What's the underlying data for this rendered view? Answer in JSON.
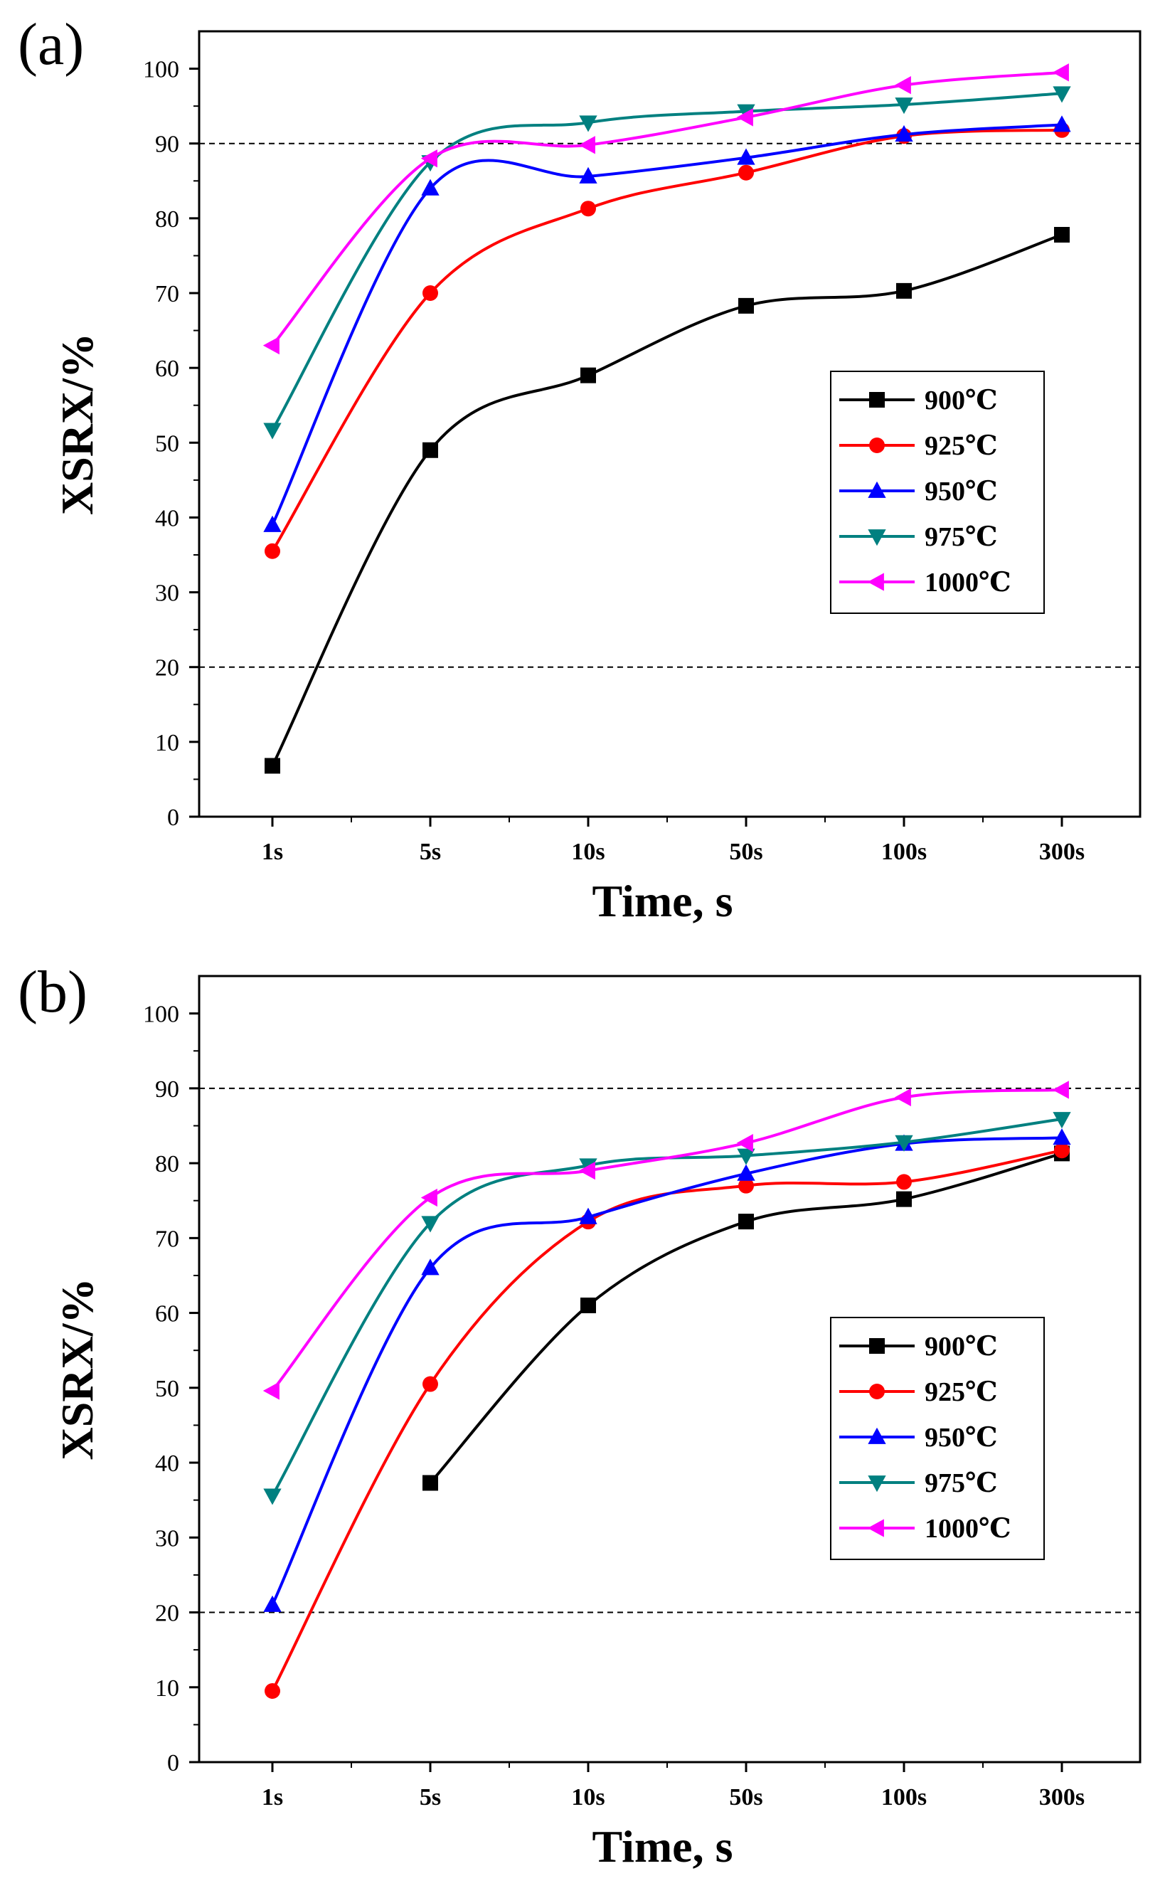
{
  "chart_data": [
    {
      "type": "line",
      "panel_label": "(a)",
      "xlabel": "Time, s",
      "ylabel": "XSRX/%",
      "categories": [
        "1s",
        "5s",
        "10s",
        "50s",
        "100s",
        "300s"
      ],
      "ylim": [
        0,
        105
      ],
      "yticks": [
        0,
        10,
        20,
        30,
        40,
        50,
        60,
        70,
        80,
        90,
        100
      ],
      "reference_lines": [
        20,
        90
      ],
      "legend_position": "right-middle",
      "series": [
        {
          "name": "900℃",
          "color": "#000000",
          "marker": "square",
          "values": [
            6.8,
            49.0,
            59.0,
            68.3,
            70.3,
            77.8
          ]
        },
        {
          "name": "925℃",
          "color": "#ff0000",
          "marker": "circle",
          "values": [
            35.5,
            70.0,
            81.3,
            86.1,
            91.0,
            91.8
          ]
        },
        {
          "name": "950℃",
          "color": "#0000ff",
          "marker": "triangle-up",
          "values": [
            39.0,
            84.0,
            85.6,
            88.1,
            91.2,
            92.5
          ]
        },
        {
          "name": "975℃",
          "color": "#008080",
          "marker": "triangle-down",
          "values": [
            51.7,
            87.5,
            92.8,
            94.3,
            95.2,
            96.7
          ]
        },
        {
          "name": "1000℃",
          "color": "#ff00ff",
          "marker": "triangle-left",
          "values": [
            63.0,
            88.0,
            89.8,
            93.5,
            97.8,
            99.5
          ]
        }
      ]
    },
    {
      "type": "line",
      "panel_label": "(b)",
      "xlabel": "Time, s",
      "ylabel": "XSRX/%",
      "categories": [
        "1s",
        "5s",
        "10s",
        "50s",
        "100s",
        "300s"
      ],
      "ylim": [
        0,
        105
      ],
      "yticks": [
        0,
        10,
        20,
        30,
        40,
        50,
        60,
        70,
        80,
        90,
        100
      ],
      "reference_lines": [
        20,
        90
      ],
      "legend_position": "right-middle",
      "series": [
        {
          "name": "900℃",
          "color": "#000000",
          "marker": "square",
          "values": [
            null,
            37.3,
            61.0,
            72.2,
            75.2,
            81.3
          ]
        },
        {
          "name": "925℃",
          "color": "#ff0000",
          "marker": "circle",
          "values": [
            9.5,
            50.5,
            72.2,
            77.0,
            77.5,
            81.7
          ]
        },
        {
          "name": "950℃",
          "color": "#0000ff",
          "marker": "triangle-up",
          "values": [
            21.0,
            66.0,
            72.8,
            78.6,
            82.6,
            83.4
          ]
        },
        {
          "name": "975℃",
          "color": "#008080",
          "marker": "triangle-down",
          "values": [
            35.6,
            72.0,
            79.7,
            81.0,
            82.8,
            85.9
          ]
        },
        {
          "name": "1000℃",
          "color": "#ff00ff",
          "marker": "triangle-left",
          "values": [
            49.6,
            75.4,
            79.0,
            82.7,
            88.8,
            89.8
          ]
        }
      ]
    }
  ]
}
